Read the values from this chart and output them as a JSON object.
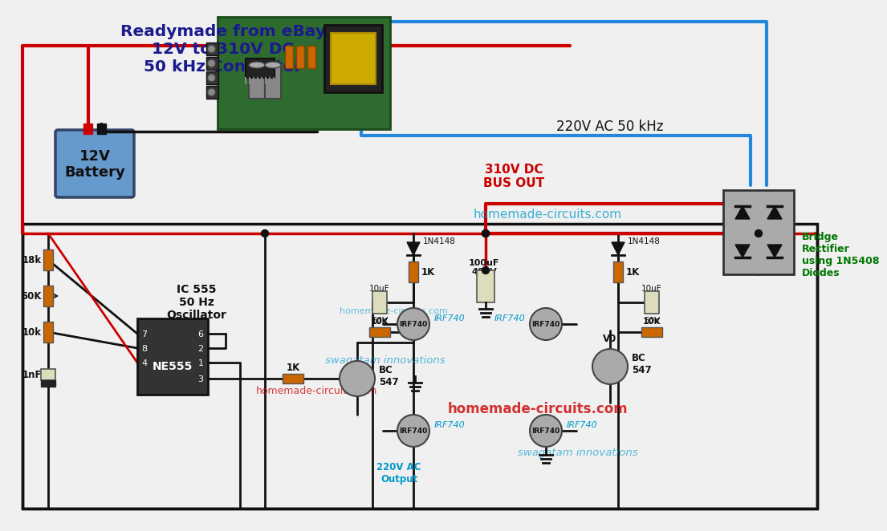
{
  "bg_color": "#f0f0f0",
  "ebay_label": "Readymade from eBay\n12V to 310V DC\n50 kHz Converter",
  "ac_label": "220V AC 50 kHz",
  "dc_bus_label": "310V DC\nBUS OUT",
  "bridge_label": "Bridge\nRectifier\nusing 1N5408\nDiodes",
  "battery_label": "12V\nBattery",
  "ic555_label": "IC 555\n50 Hz\nOscillator",
  "watermark_cyan": "homemade-circuits.com",
  "watermark_swagatam": "swagatam innovations",
  "watermark_red": "homemade-circuits.com",
  "ac_output_label": "220V AC\nOutput",
  "v0_label": "V0",
  "colors": {
    "bg": "#f0f0f0",
    "wire_black": "#111111",
    "wire_red": "#cc0000",
    "wire_blue": "#2288dd",
    "battery_fill": "#6699cc",
    "battery_border": "#334466",
    "resistor_fill": "#cc6600",
    "transistor_fill": "#aaaaaa",
    "ic_fill": "#333333",
    "pcb_fill": "#2d6a2d",
    "bridge_fill": "#aaaaaa",
    "label_dark_blue": "#1a1a8c",
    "label_red": "#cc0000",
    "label_green": "#007700",
    "label_cyan": "#0099cc",
    "label_black": "#111111"
  }
}
